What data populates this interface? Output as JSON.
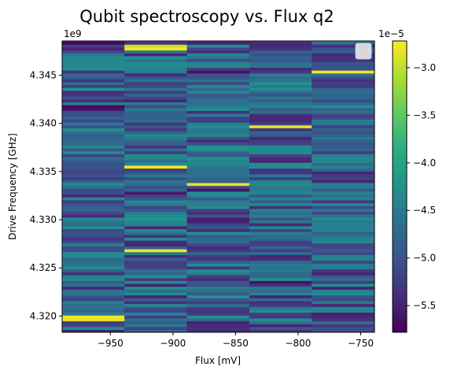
{
  "chart_data": {
    "type": "heatmap",
    "title": "Qubit spectroscopy vs. Flux q2",
    "xlabel": "Flux [mV]",
    "ylabel": "Drive Frequency [GHz]",
    "y_offset_label": "1e9",
    "xlim": [
      -988.5,
      -739
    ],
    "ylim": [
      4318320000.0,
      4348550000.0
    ],
    "xticks": [
      -950,
      -900,
      -850,
      -800,
      -750
    ],
    "xtick_labels": [
      "−950",
      "−900",
      "−850",
      "−800",
      "−750"
    ],
    "yticks": [
      4320000000.0,
      4325000000.0,
      4330000000.0,
      4335000000.0,
      4340000000.0,
      4345000000.0
    ],
    "ytick_labels": [
      "4.320",
      "4.325",
      "4.330",
      "4.335",
      "4.340",
      "4.345"
    ],
    "flux_columns": [
      -963.6,
      -913.8,
      -863.9,
      -814.0,
      -764.2
    ],
    "column_width": 49.9,
    "colorbar": {
      "colormap": "viridis",
      "range": [
        -5.78e-05,
        -2.72e-05
      ],
      "offset_label": "1e−5",
      "ticks": [
        -5.5,
        -5.0,
        -4.5,
        -4.0,
        -3.5,
        -3.0
      ],
      "tick_labels": [
        "−5.5",
        "−5.0",
        "−4.5",
        "−4.0",
        "−3.5",
        "−3.0"
      ]
    },
    "legend": {
      "placement": "upper right"
    },
    "grid": false,
    "y_range": [
      4318300000.0,
      4348500000.0
    ],
    "n_rows": 101,
    "colors": {
      "axis": "#000000",
      "background": "#ffffff"
    }
  }
}
